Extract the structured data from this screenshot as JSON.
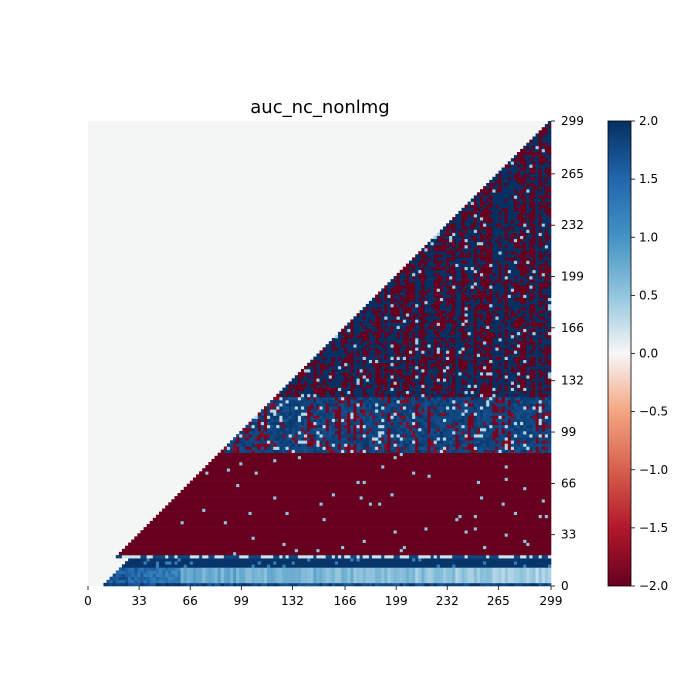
{
  "chart_data": {
    "type": "heatmap",
    "title": "auc_nc_nonlmg",
    "xlabel": "",
    "ylabel": "",
    "x_ticks": [
      "0",
      "33",
      "66",
      "99",
      "132",
      "166",
      "199",
      "232",
      "265",
      "299"
    ],
    "y_ticks": [
      "0",
      "33",
      "66",
      "99",
      "132",
      "166",
      "199",
      "232",
      "265",
      "299"
    ],
    "xlim": [
      0,
      299
    ],
    "ylim": [
      0,
      299
    ],
    "grid": false,
    "mask": "upper-left triangle (above diagonal) is masked",
    "colormap": "RdBu",
    "vmin": -2.0,
    "vmax": 2.0,
    "colorbar_ticks": [
      "2.0",
      "1.5",
      "1.0",
      "0.5",
      "0.0",
      "−0.5",
      "−1.0",
      "−1.5",
      "−2.0"
    ],
    "approximate_row_bands": [
      {
        "rows": [
          0,
          10
        ],
        "value": 0.8
      },
      {
        "rows": [
          10,
          18
        ],
        "value": 2.0
      },
      {
        "rows": [
          18,
          85
        ],
        "value": -2.0
      },
      {
        "rows": [
          85,
          120
        ],
        "value": 1.5
      },
      {
        "rows": [
          120,
          299
        ],
        "value": "mixed (±2)"
      }
    ]
  },
  "colors": {
    "masked": "#f4f6f6",
    "max": "#053061",
    "min": "#67001f"
  }
}
